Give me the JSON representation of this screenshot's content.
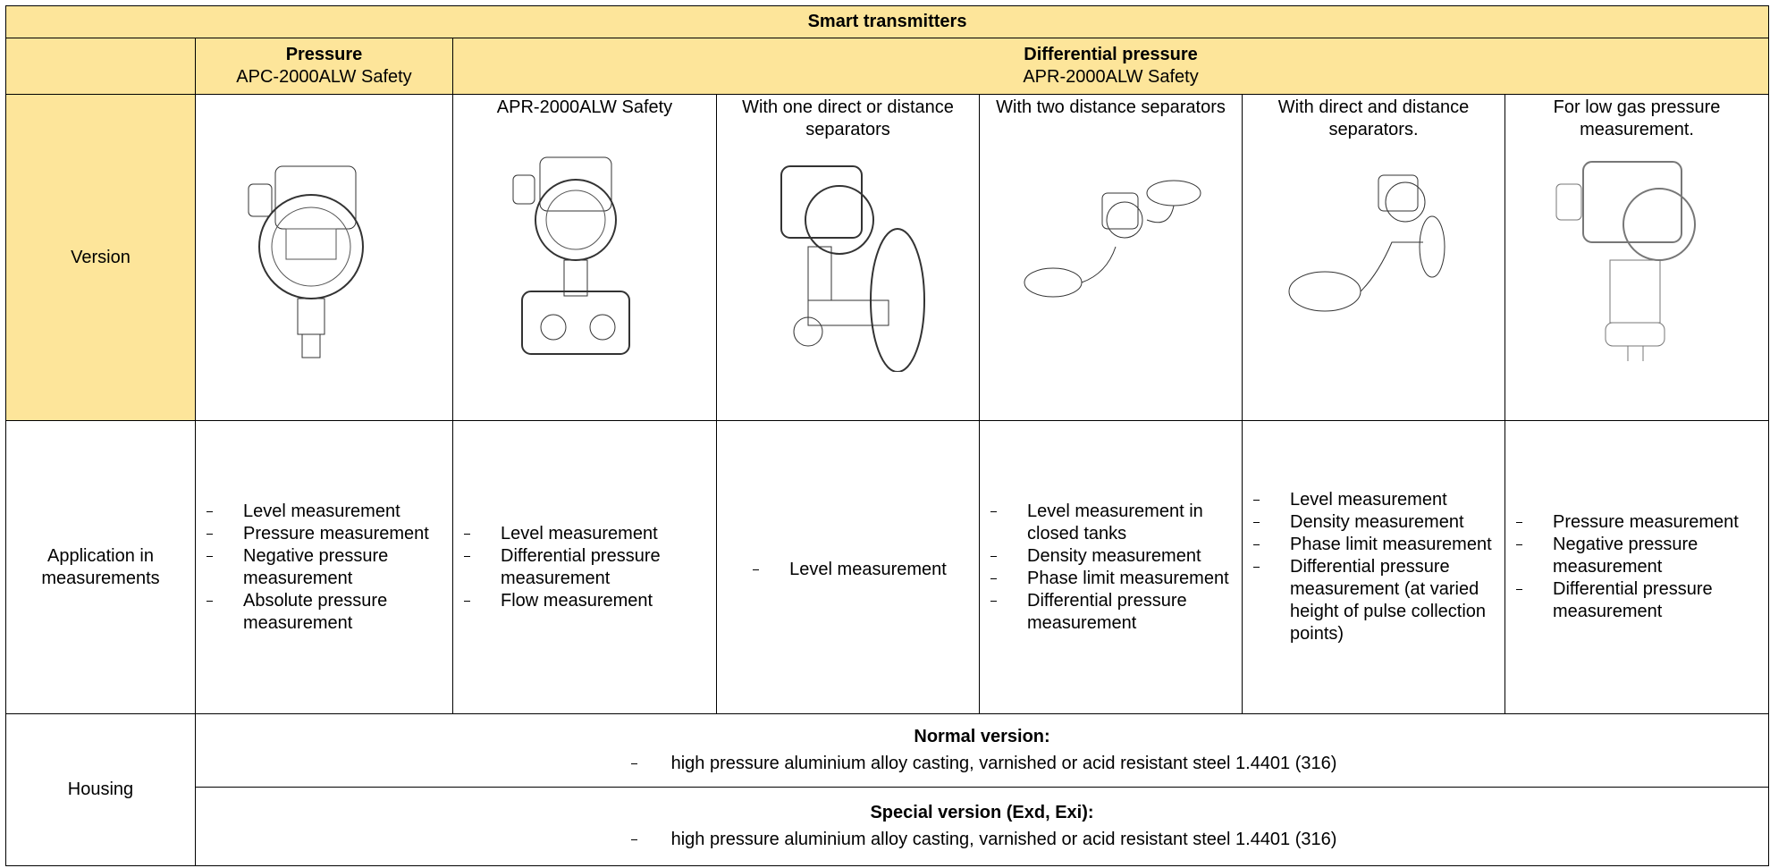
{
  "table": {
    "title": "Smart transmitters",
    "groups": [
      {
        "title": "Pressure",
        "subtitle": "APC-2000ALW Safety"
      },
      {
        "title": "Differential pressure",
        "subtitle": "APR-2000ALW Safety"
      }
    ],
    "row_labels": [
      "Version",
      "Application in measurements",
      "Housing"
    ],
    "versions": [
      null,
      "APR-2000ALW Safety",
      "With one direct or distance separators",
      "With two distance separators",
      "With direct and distance separators.",
      "For low gas pressure measurement."
    ],
    "applications": [
      [
        "Level measurement",
        "Pressure measurement",
        "Negative pressure measurement",
        "Absolute pressure measurement"
      ],
      [
        "Level measurement",
        "Differential pressure measurement",
        "Flow measurement"
      ],
      [
        "Level measurement"
      ],
      [
        "Level measurement in closed tanks",
        "Density measurement",
        "Phase limit measurement",
        "Differential pressure measurement"
      ],
      [
        "Level measurement",
        "Density measurement",
        "Phase limit measurement",
        "Differential pressure measurement (at varied height of pulse collection points)"
      ],
      [
        "Pressure measurement",
        "Negative pressure measurement",
        "Differential pressure measurement"
      ]
    ],
    "housing": [
      {
        "title": "Normal version:",
        "items": [
          "high pressure aluminium alloy casting, varnished or acid resistant steel 1.4401 (316)"
        ]
      },
      {
        "title": "Special version (Exd, Exi):",
        "items": [
          "high pressure aluminium alloy casting, varnished or acid resistant steel 1.4401 (316)"
        ]
      }
    ]
  }
}
